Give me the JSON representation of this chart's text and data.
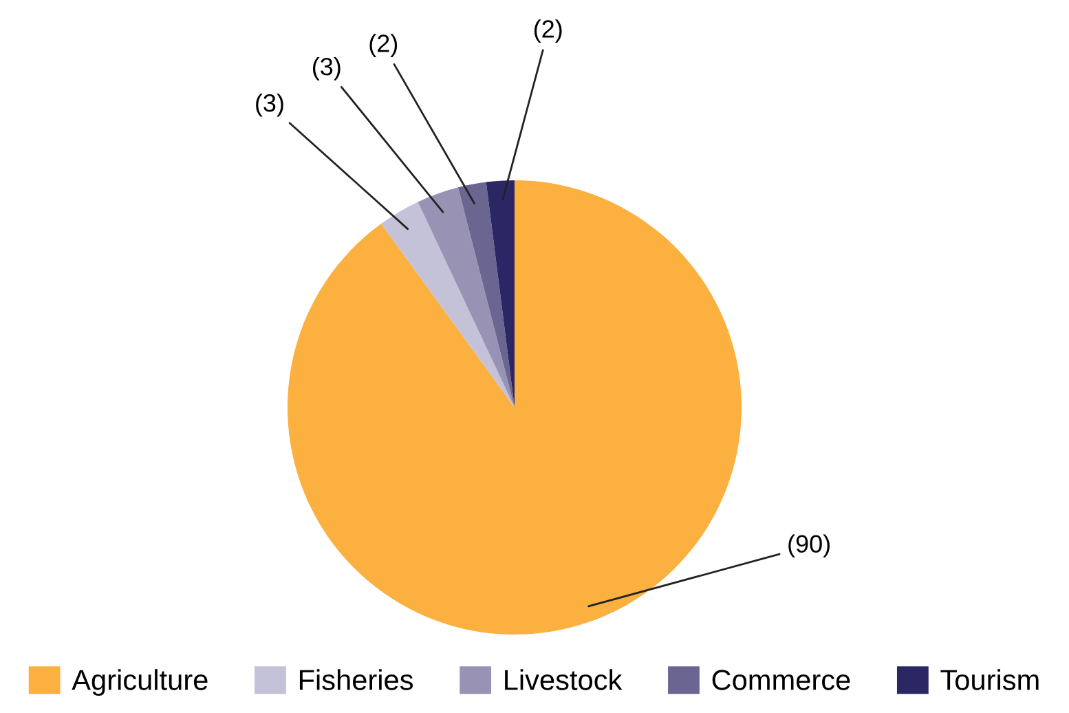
{
  "chart_data": {
    "type": "pie",
    "categories": [
      "Agriculture",
      "Fisheries",
      "Livestock",
      "Commerce",
      "Tourism"
    ],
    "values": [
      90,
      3,
      3,
      2,
      2
    ],
    "colors": [
      "#fbb040",
      "#c4c2d8",
      "#9893b5",
      "#6b6592",
      "#2b2764"
    ],
    "value_labels": [
      "(90)",
      "(3)",
      "(3)",
      "(2)",
      "(2)"
    ],
    "legend": "bottom"
  }
}
